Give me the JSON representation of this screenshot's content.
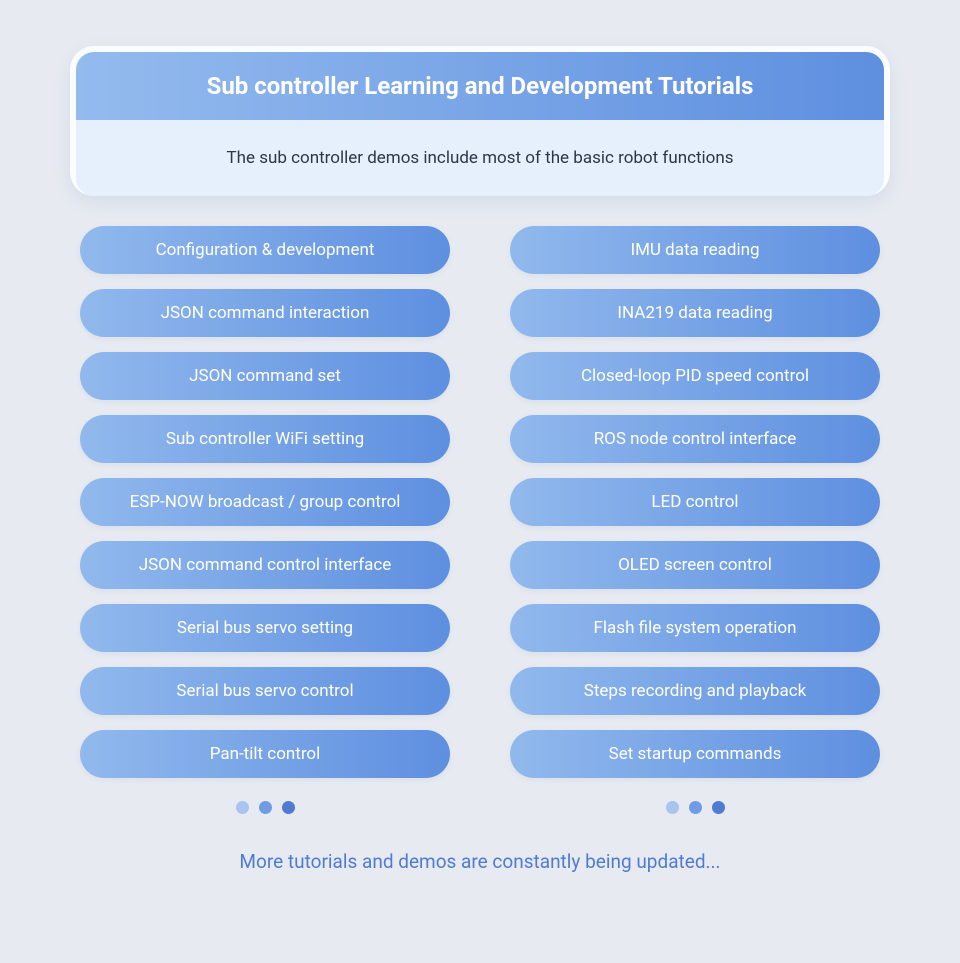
{
  "page": {
    "background_color": "#e7ebf1"
  },
  "header": {
    "title": "Sub controller Learning and Development Tutorials",
    "subtitle": "The sub controller demos include most of the basic robot functions",
    "title_gradient": [
      "#94bbee",
      "#5e8fe0"
    ],
    "title_text_color": "#ffffff",
    "title_fontsize": 24,
    "title_fontweight": 700,
    "subtitle_bg": "#e5f0fc",
    "subtitle_text_color": "#2d3747",
    "subtitle_fontsize": 17,
    "card_bg": "#fbfcfe",
    "card_radius": 24
  },
  "pill_style": {
    "gradient": [
      "#91b9ed",
      "#5e8fe0"
    ],
    "text_color": "#ffffff",
    "fontsize": 17,
    "radius": 999,
    "height_padding": 14
  },
  "left_column": {
    "items": [
      "Configuration & development",
      "JSON command interaction",
      "JSON command set",
      "Sub controller WiFi setting",
      "ESP-NOW broadcast / group control",
      "JSON command control interface",
      "Serial bus servo setting",
      "Serial bus servo control",
      "Pan-tilt control"
    ]
  },
  "right_column": {
    "items": [
      "IMU data reading",
      "INA219 data reading",
      "Closed-loop PID speed control",
      "ROS node control interface",
      "LED control",
      "OLED screen control",
      "Flash file system operation",
      "Steps recording and playback",
      "Set startup commands"
    ]
  },
  "dots": {
    "colors": [
      "#a7c5ef",
      "#6f9ce3",
      "#4f7bd1"
    ],
    "size": 13
  },
  "footer": {
    "text": "More tutorials and demos are constantly being updated...",
    "color": "#4f7bd1",
    "fontsize": 19
  }
}
